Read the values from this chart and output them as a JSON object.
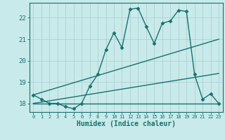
{
  "xlabel": "Humidex (Indice chaleur)",
  "bg_color": "#c8eaea",
  "grid_color": "#b0d0d0",
  "line_color": "#1a7070",
  "xlim": [
    -0.5,
    23.5
  ],
  "ylim": [
    17.6,
    22.7
  ],
  "yticks": [
    18,
    19,
    20,
    21,
    22
  ],
  "xticks": [
    0,
    1,
    2,
    3,
    4,
    5,
    6,
    7,
    8,
    9,
    10,
    11,
    12,
    13,
    14,
    15,
    16,
    17,
    18,
    19,
    20,
    21,
    22,
    23
  ],
  "series1_x": [
    0,
    1,
    2,
    3,
    4,
    5,
    6,
    7,
    8,
    9,
    10,
    11,
    12,
    13,
    14,
    15,
    16,
    17,
    18,
    19,
    20,
    21,
    22,
    23
  ],
  "series1_y": [
    18.4,
    18.2,
    18.0,
    18.0,
    17.85,
    17.75,
    18.0,
    18.8,
    19.35,
    20.5,
    21.3,
    20.6,
    22.4,
    22.45,
    21.6,
    20.8,
    21.75,
    21.85,
    22.35,
    22.3,
    19.35,
    18.2,
    18.45,
    18.0
  ],
  "series2_x": [
    0,
    23
  ],
  "series2_y": [
    18.0,
    18.0
  ],
  "series3_x": [
    0,
    23
  ],
  "series3_y": [
    18.4,
    21.0
  ],
  "series4_x": [
    0,
    23
  ],
  "series4_y": [
    18.0,
    19.4
  ],
  "marker": "D",
  "markersize": 2.5,
  "linewidth": 1.0
}
